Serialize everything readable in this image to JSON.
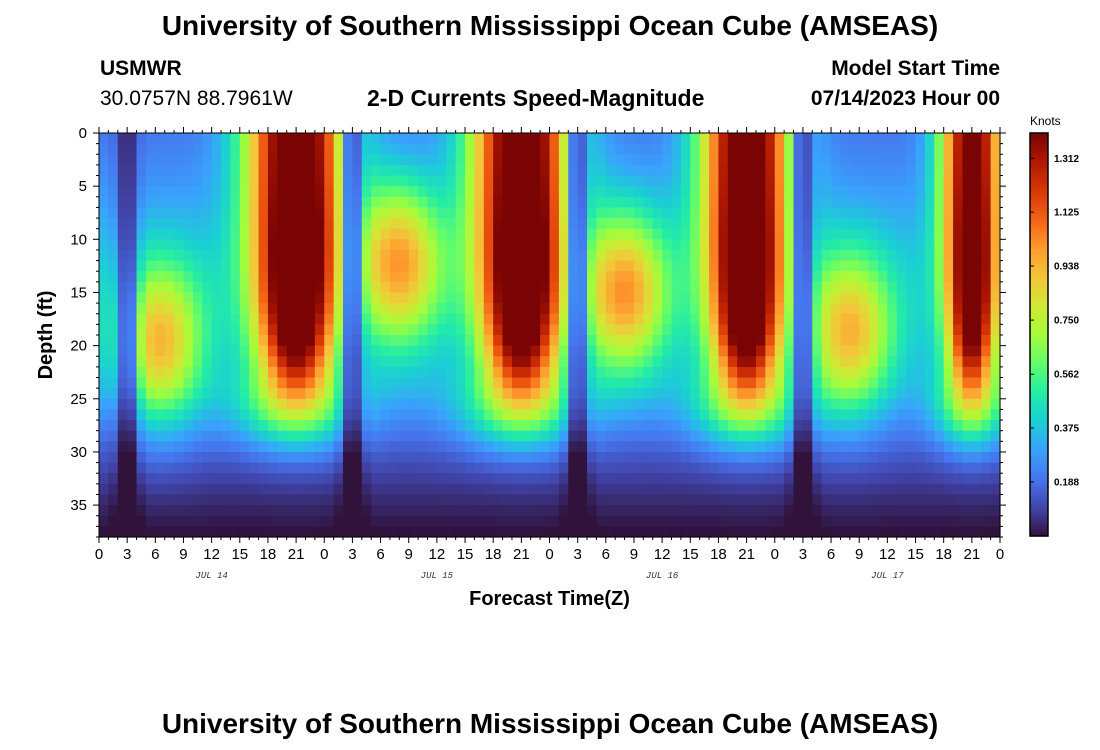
{
  "page": {
    "title_top": "University of Southern Mississippi Ocean Cube (AMSEAS)",
    "title_bottom": "University of Southern Mississippi Ocean Cube (AMSEAS)",
    "station_id": "USMWR",
    "station_coords": "30.0757N  88.7961W",
    "plot_subtitle": "2-D Currents Speed-Magnitude",
    "model_start_label": "Model Start Time",
    "model_start_value": "07/14/2023 Hour 00"
  },
  "chart_data": {
    "type": "heatmap",
    "title": "2-D Currents Speed-Magnitude",
    "xlabel": "Forecast Time(Z)",
    "ylabel": "Depth (ft)",
    "xlim": [
      0,
      96
    ],
    "ylim": [
      0,
      38
    ],
    "y_inverted": true,
    "x_ticks": [
      {
        "hour": 0,
        "label": "0"
      },
      {
        "hour": 3,
        "label": "3"
      },
      {
        "hour": 6,
        "label": "6"
      },
      {
        "hour": 9,
        "label": "9"
      },
      {
        "hour": 12,
        "label": "12"
      },
      {
        "hour": 15,
        "label": "15"
      },
      {
        "hour": 18,
        "label": "18"
      },
      {
        "hour": 21,
        "label": "21"
      },
      {
        "hour": 24,
        "label": "0"
      },
      {
        "hour": 27,
        "label": "3"
      },
      {
        "hour": 30,
        "label": "6"
      },
      {
        "hour": 33,
        "label": "9"
      },
      {
        "hour": 36,
        "label": "12"
      },
      {
        "hour": 39,
        "label": "15"
      },
      {
        "hour": 42,
        "label": "18"
      },
      {
        "hour": 45,
        "label": "21"
      },
      {
        "hour": 48,
        "label": "0"
      },
      {
        "hour": 51,
        "label": "3"
      },
      {
        "hour": 54,
        "label": "6"
      },
      {
        "hour": 57,
        "label": "9"
      },
      {
        "hour": 60,
        "label": "12"
      },
      {
        "hour": 63,
        "label": "15"
      },
      {
        "hour": 66,
        "label": "18"
      },
      {
        "hour": 69,
        "label": "21"
      },
      {
        "hour": 72,
        "label": "0"
      },
      {
        "hour": 75,
        "label": "3"
      },
      {
        "hour": 78,
        "label": "6"
      },
      {
        "hour": 81,
        "label": "9"
      },
      {
        "hour": 84,
        "label": "12"
      },
      {
        "hour": 87,
        "label": "15"
      },
      {
        "hour": 90,
        "label": "18"
      },
      {
        "hour": 93,
        "label": "21"
      },
      {
        "hour": 96,
        "label": "0"
      }
    ],
    "y_ticks": [
      0,
      5,
      10,
      15,
      20,
      25,
      30,
      35
    ],
    "date_labels": [
      {
        "hour": 12,
        "label": "JUL 14"
      },
      {
        "hour": 36,
        "label": "JUL 15"
      },
      {
        "hour": 60,
        "label": "JUL 16"
      },
      {
        "hour": 84,
        "label": "JUL 17"
      }
    ],
    "colorbar": {
      "title": "Knots",
      "range": [
        0.0,
        1.4
      ],
      "ticks": [
        0.188,
        0.375,
        0.562,
        0.75,
        0.938,
        1.125,
        1.312
      ],
      "tick_labels": [
        "0.188",
        "0.375",
        "0.562",
        "0.750",
        "0.938",
        "1.125",
        "1.312"
      ],
      "colors": [
        "#30123b",
        "#4145ab",
        "#4675ed",
        "#39a2fc",
        "#1bcfd4",
        "#24eca6",
        "#61fc6c",
        "#a4fc3b",
        "#d1e834",
        "#f3c63a",
        "#fe9b2d",
        "#f36315",
        "#d93806",
        "#b11901",
        "#7a0403"
      ]
    },
    "features": {
      "surface_peaks_hour": [
        21,
        45,
        69,
        93
      ],
      "surface_peak_halfwidth_hours": [
        4.0,
        4.0,
        3.6,
        2.5
      ],
      "surface_peak_speed_knots": [
        1.4,
        1.4,
        1.4,
        1.3
      ],
      "secondary_peaks": [
        {
          "hour": 6.5,
          "depth": 20,
          "speed": 0.8
        },
        {
          "hour": 32,
          "depth": 12,
          "speed": 0.85
        },
        {
          "hour": 56,
          "depth": 15,
          "speed": 0.85
        },
        {
          "hour": 80,
          "depth": 19,
          "speed": 0.8
        }
      ],
      "slack_minima_hour": [
        3,
        27,
        51,
        75
      ],
      "deep_background_speed_knots": 0.17
    }
  }
}
